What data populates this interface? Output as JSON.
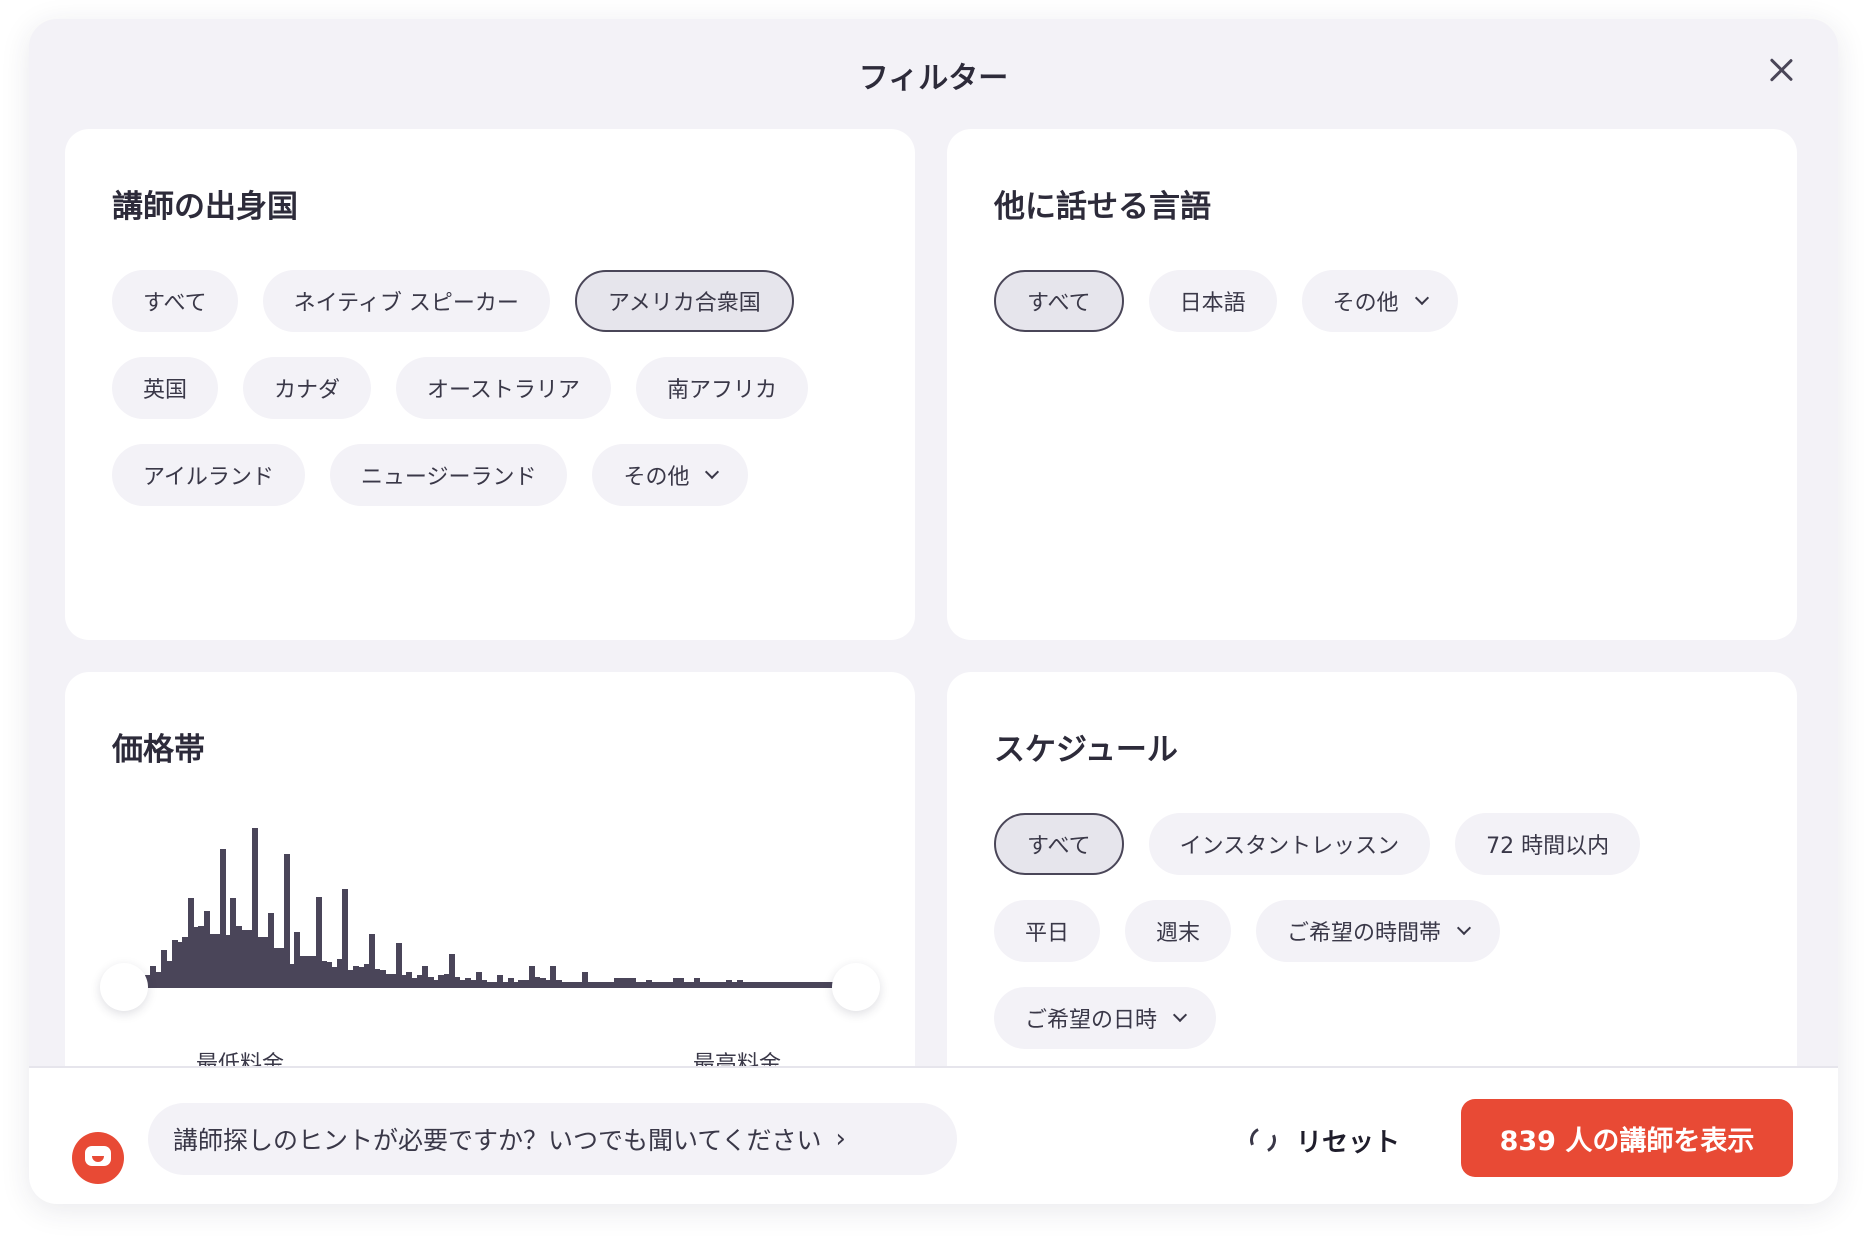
{
  "header": {
    "title": "フィルター",
    "close_icon": "close-icon"
  },
  "country": {
    "title": "講師の出身国",
    "chips": [
      {
        "label": "すべて",
        "selected": false
      },
      {
        "label": "ネイティブ スピーカー",
        "selected": false
      },
      {
        "label": "アメリカ合衆国",
        "selected": true
      },
      {
        "label": "英国",
        "selected": false
      },
      {
        "label": "カナダ",
        "selected": false
      },
      {
        "label": "オーストラリア",
        "selected": false
      },
      {
        "label": "南アフリカ",
        "selected": false
      },
      {
        "label": "アイルランド",
        "selected": false
      },
      {
        "label": "ニュージーランド",
        "selected": false
      },
      {
        "label": "その他",
        "selected": false,
        "dropdown": true
      }
    ]
  },
  "languages": {
    "title": "他に話せる言語",
    "chips": [
      {
        "label": "すべて",
        "selected": true
      },
      {
        "label": "日本語",
        "selected": false
      },
      {
        "label": "その他",
        "selected": false,
        "dropdown": true
      }
    ]
  },
  "price": {
    "title": "価格帯",
    "min_label": "最低料金",
    "max_label": "最高料金",
    "range_selected": [
      0,
      1
    ],
    "histogram": [
      8,
      14,
      10,
      24,
      17,
      30,
      29,
      32,
      56,
      38,
      39,
      48,
      34,
      34,
      87,
      33,
      56,
      39,
      36,
      36,
      100,
      32,
      32,
      47,
      25,
      25,
      84,
      15,
      35,
      20,
      20,
      20,
      57,
      17,
      16,
      13,
      18,
      62,
      11,
      14,
      13,
      15,
      34,
      12,
      11,
      9,
      9,
      28,
      8,
      10,
      6,
      8,
      14,
      7,
      5,
      8,
      9,
      21,
      7,
      5,
      6,
      5,
      10,
      5,
      4,
      4,
      8,
      4,
      6,
      4,
      5,
      5,
      14,
      7,
      6,
      5,
      14,
      5,
      4,
      4,
      4,
      4,
      10,
      4,
      4,
      4,
      4,
      4,
      6,
      6,
      6,
      6,
      4,
      4,
      5,
      4,
      4,
      4,
      4,
      6,
      6,
      4,
      4,
      6,
      4,
      4,
      4,
      4,
      4,
      5,
      4,
      5,
      4,
      4,
      4,
      4,
      4,
      4,
      4,
      4,
      4,
      4,
      4,
      4,
      4,
      4,
      4,
      4,
      4
    ]
  },
  "schedule": {
    "title": "スケジュール",
    "chips": [
      {
        "label": "すべて",
        "selected": true
      },
      {
        "label": "インスタントレッスン",
        "selected": false
      },
      {
        "label": "72 時間以内",
        "selected": false
      },
      {
        "label": "平日",
        "selected": false
      },
      {
        "label": "週末",
        "selected": false
      },
      {
        "label": "ご希望の時間帯",
        "selected": false,
        "dropdown": true
      },
      {
        "label": "ご希望の日時",
        "selected": false,
        "dropdown": true
      }
    ]
  },
  "footer": {
    "hint": "講師探しのヒントが必要ですか？いつでも聞いてください",
    "hint_arrow": "›",
    "reset": "リセット",
    "show_button": "839 人の講師を表示",
    "accent": "#e84a35"
  }
}
